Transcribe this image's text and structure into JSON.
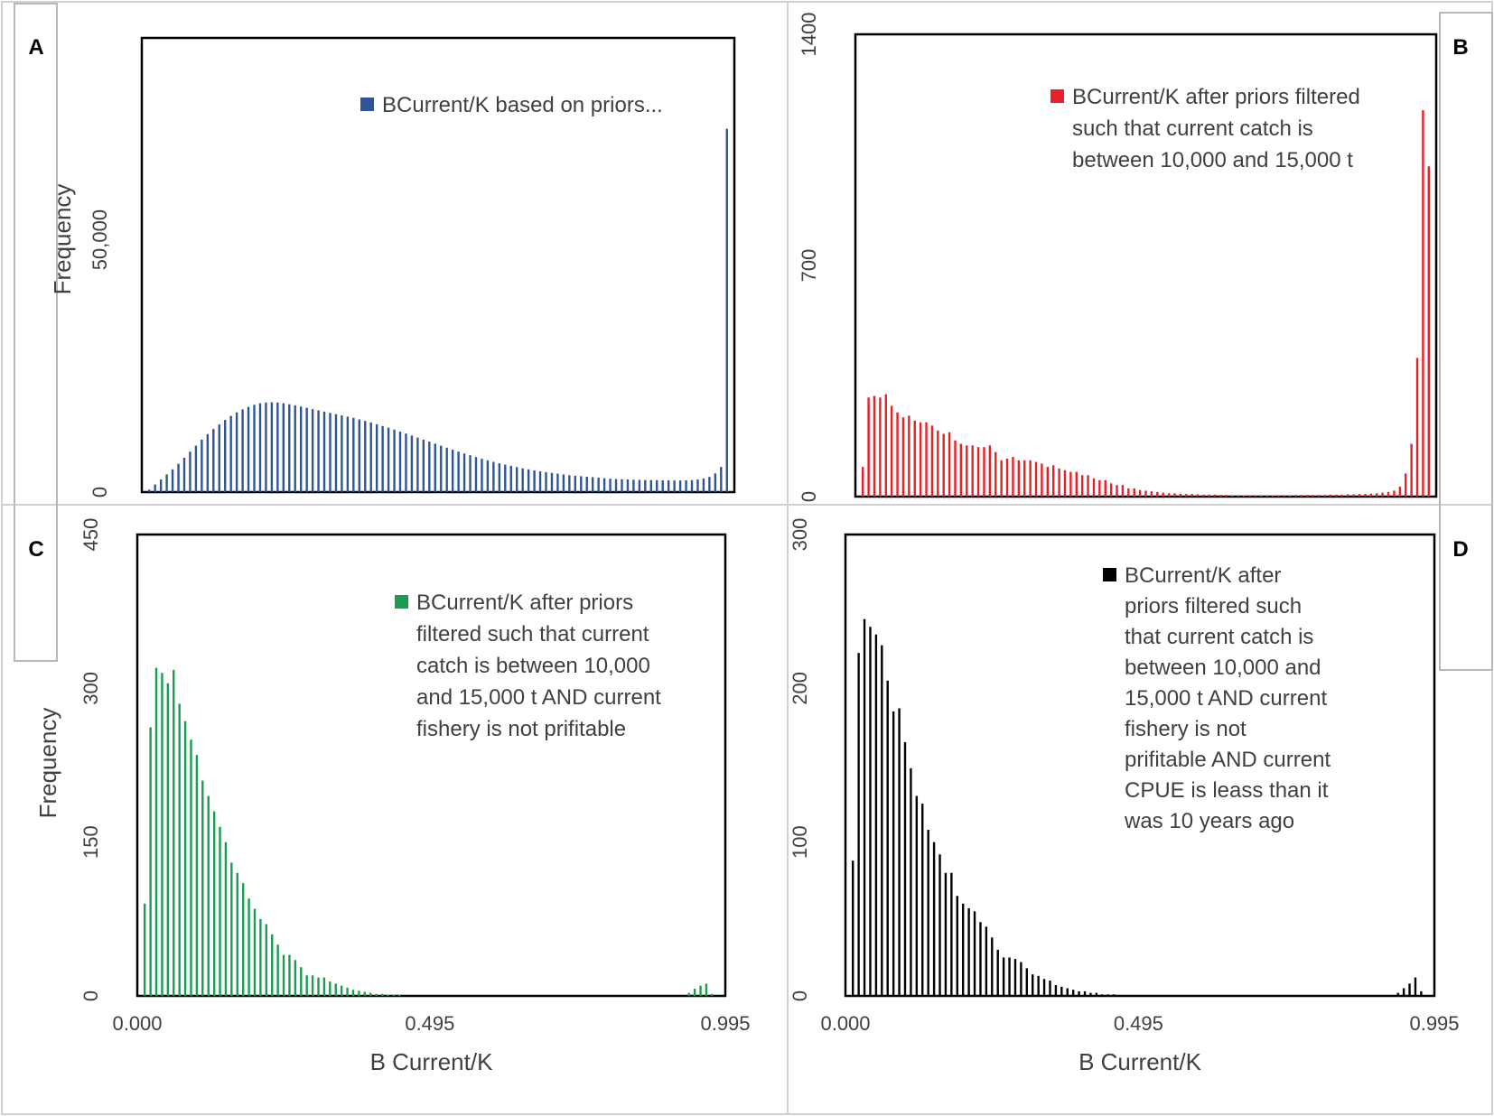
{
  "chart_data": [
    {
      "panel": "A",
      "type": "bar",
      "color": "#2f5597",
      "ylabel": "Frequency",
      "xlabel": "",
      "ylim": [
        0,
        90000
      ],
      "yticks": [
        {
          "value": 0,
          "label": "0"
        },
        {
          "value": 50000,
          "label": "50,000"
        }
      ],
      "xticks": [],
      "legend": [
        "BCurrent/K based on priors..."
      ],
      "values": [
        500,
        1500,
        2500,
        3500,
        4500,
        5600,
        6800,
        8000,
        9200,
        10400,
        11500,
        12500,
        13400,
        14300,
        15100,
        15800,
        16400,
        16900,
        17300,
        17600,
        17750,
        17800,
        17750,
        17600,
        17400,
        17200,
        16950,
        16700,
        16450,
        16200,
        15950,
        15700,
        15450,
        15200,
        14950,
        14700,
        14400,
        14100,
        13800,
        13450,
        13100,
        12750,
        12400,
        12000,
        11600,
        11200,
        10800,
        10400,
        10000,
        9600,
        9200,
        8800,
        8400,
        8000,
        7650,
        7300,
        6950,
        6600,
        6300,
        6000,
        5700,
        5450,
        5200,
        4950,
        4700,
        4500,
        4300,
        4100,
        3950,
        3800,
        3650,
        3500,
        3350,
        3250,
        3150,
        3050,
        2950,
        2850,
        2750,
        2650,
        2600,
        2550,
        2500,
        2450,
        2420,
        2400,
        2380,
        2360,
        2340,
        2320,
        2300,
        2300,
        2320,
        2380,
        2500,
        2700,
        3000,
        3700,
        5000,
        72000
      ]
    },
    {
      "panel": "B",
      "type": "bar",
      "color": "#e8202a",
      "ylabel": "",
      "xlabel": "",
      "ylim": [
        0,
        1400
      ],
      "yticks": [
        {
          "value": 0,
          "label": "0"
        },
        {
          "value": 700,
          "label": "700"
        },
        {
          "value": 1400,
          "label": "1400"
        }
      ],
      "xticks": [],
      "legend": [
        "BCurrent/K after priors filtered",
        "such that current catch is",
        "between 10,000 and 15,000 t"
      ],
      "values": [
        90,
        300,
        305,
        300,
        310,
        275,
        255,
        240,
        245,
        230,
        225,
        225,
        215,
        200,
        190,
        195,
        170,
        160,
        155,
        155,
        150,
        150,
        155,
        135,
        110,
        115,
        120,
        110,
        110,
        110,
        105,
        100,
        90,
        95,
        85,
        80,
        75,
        75,
        65,
        65,
        55,
        50,
        50,
        40,
        35,
        35,
        25,
        25,
        20,
        18,
        16,
        14,
        12,
        10,
        10,
        9,
        8,
        8,
        7,
        6,
        6,
        6,
        5,
        5,
        4,
        4,
        4,
        4,
        4,
        4,
        4,
        4,
        4,
        4,
        4,
        5,
        5,
        5,
        5,
        5,
        5,
        6,
        6,
        6,
        7,
        7,
        8,
        8,
        9,
        10,
        12,
        14,
        18,
        30,
        70,
        160,
        420,
        1170,
        1000
      ]
    },
    {
      "panel": "C",
      "type": "bar",
      "color": "#1a9d50",
      "ylabel": "Frequency",
      "xlabel": "B Current/K",
      "ylim": [
        0,
        450
      ],
      "yticks": [
        {
          "value": 0,
          "label": "0"
        },
        {
          "value": 150,
          "label": "150"
        },
        {
          "value": 300,
          "label": "300"
        },
        {
          "value": 450,
          "label": "450"
        }
      ],
      "xticks": [
        {
          "value": 0.0,
          "label": "0.000"
        },
        {
          "value": 0.495,
          "label": "0.495"
        },
        {
          "value": 0.995,
          "label": "0.995"
        }
      ],
      "legend": [
        "BCurrent/K after priors",
        "filtered such that current",
        "catch is between 10,000",
        "and 15,000 t AND current",
        "fishery is not prifitable"
      ],
      "values": [
        90,
        262,
        320,
        315,
        305,
        318,
        285,
        268,
        250,
        235,
        210,
        195,
        180,
        165,
        150,
        130,
        120,
        110,
        95,
        85,
        75,
        70,
        60,
        50,
        40,
        40,
        35,
        28,
        20,
        20,
        18,
        18,
        14,
        12,
        10,
        8,
        6,
        5,
        4,
        3,
        2,
        2,
        1,
        1,
        1,
        0,
        0,
        0,
        0,
        0,
        0,
        0,
        0,
        0,
        0,
        0,
        0,
        0,
        0,
        0,
        0,
        0,
        0,
        0,
        0,
        0,
        0,
        0,
        0,
        0,
        0,
        0,
        0,
        0,
        0,
        0,
        0,
        0,
        0,
        0,
        0,
        0,
        0,
        0,
        0,
        0,
        0,
        0,
        0,
        0,
        0,
        0,
        0,
        0,
        3,
        7,
        10,
        12,
        2,
        0
      ]
    },
    {
      "panel": "D",
      "type": "bar",
      "color": "#000000",
      "ylabel": "",
      "xlabel": "B Current/K",
      "ylim": [
        0,
        300
      ],
      "yticks": [
        {
          "value": 0,
          "label": "0"
        },
        {
          "value": 100,
          "label": "100"
        },
        {
          "value": 200,
          "label": "200"
        },
        {
          "value": 300,
          "label": "300"
        }
      ],
      "xticks": [
        {
          "value": 0.0,
          "label": "0.000"
        },
        {
          "value": 0.495,
          "label": "0.495"
        },
        {
          "value": 0.995,
          "label": "0.995"
        }
      ],
      "legend": [
        "BCurrent/K after",
        "priors filtered such",
        "that current catch is",
        "between 10,000 and",
        "15,000 t AND current",
        "fishery is not",
        "prifitable AND current",
        "CPUE is leass than it",
        "was 10 years ago"
      ],
      "values": [
        88,
        223,
        245,
        240,
        235,
        228,
        205,
        185,
        187,
        165,
        148,
        130,
        125,
        108,
        100,
        92,
        80,
        80,
        65,
        60,
        57,
        55,
        48,
        45,
        38,
        30,
        25,
        25,
        24,
        22,
        18,
        14,
        13,
        11,
        10,
        7,
        6,
        5,
        4,
        3,
        3,
        2,
        2,
        1,
        1,
        1,
        0,
        0,
        0,
        0,
        0,
        0,
        0,
        0,
        0,
        0,
        0,
        0,
        0,
        0,
        0,
        0,
        0,
        0,
        0,
        0,
        0,
        0,
        0,
        0,
        0,
        0,
        0,
        0,
        0,
        0,
        0,
        0,
        0,
        0,
        0,
        0,
        0,
        0,
        0,
        0,
        0,
        0,
        0,
        0,
        0,
        0,
        0,
        0,
        2,
        5,
        8,
        12,
        3,
        0
      ]
    }
  ]
}
